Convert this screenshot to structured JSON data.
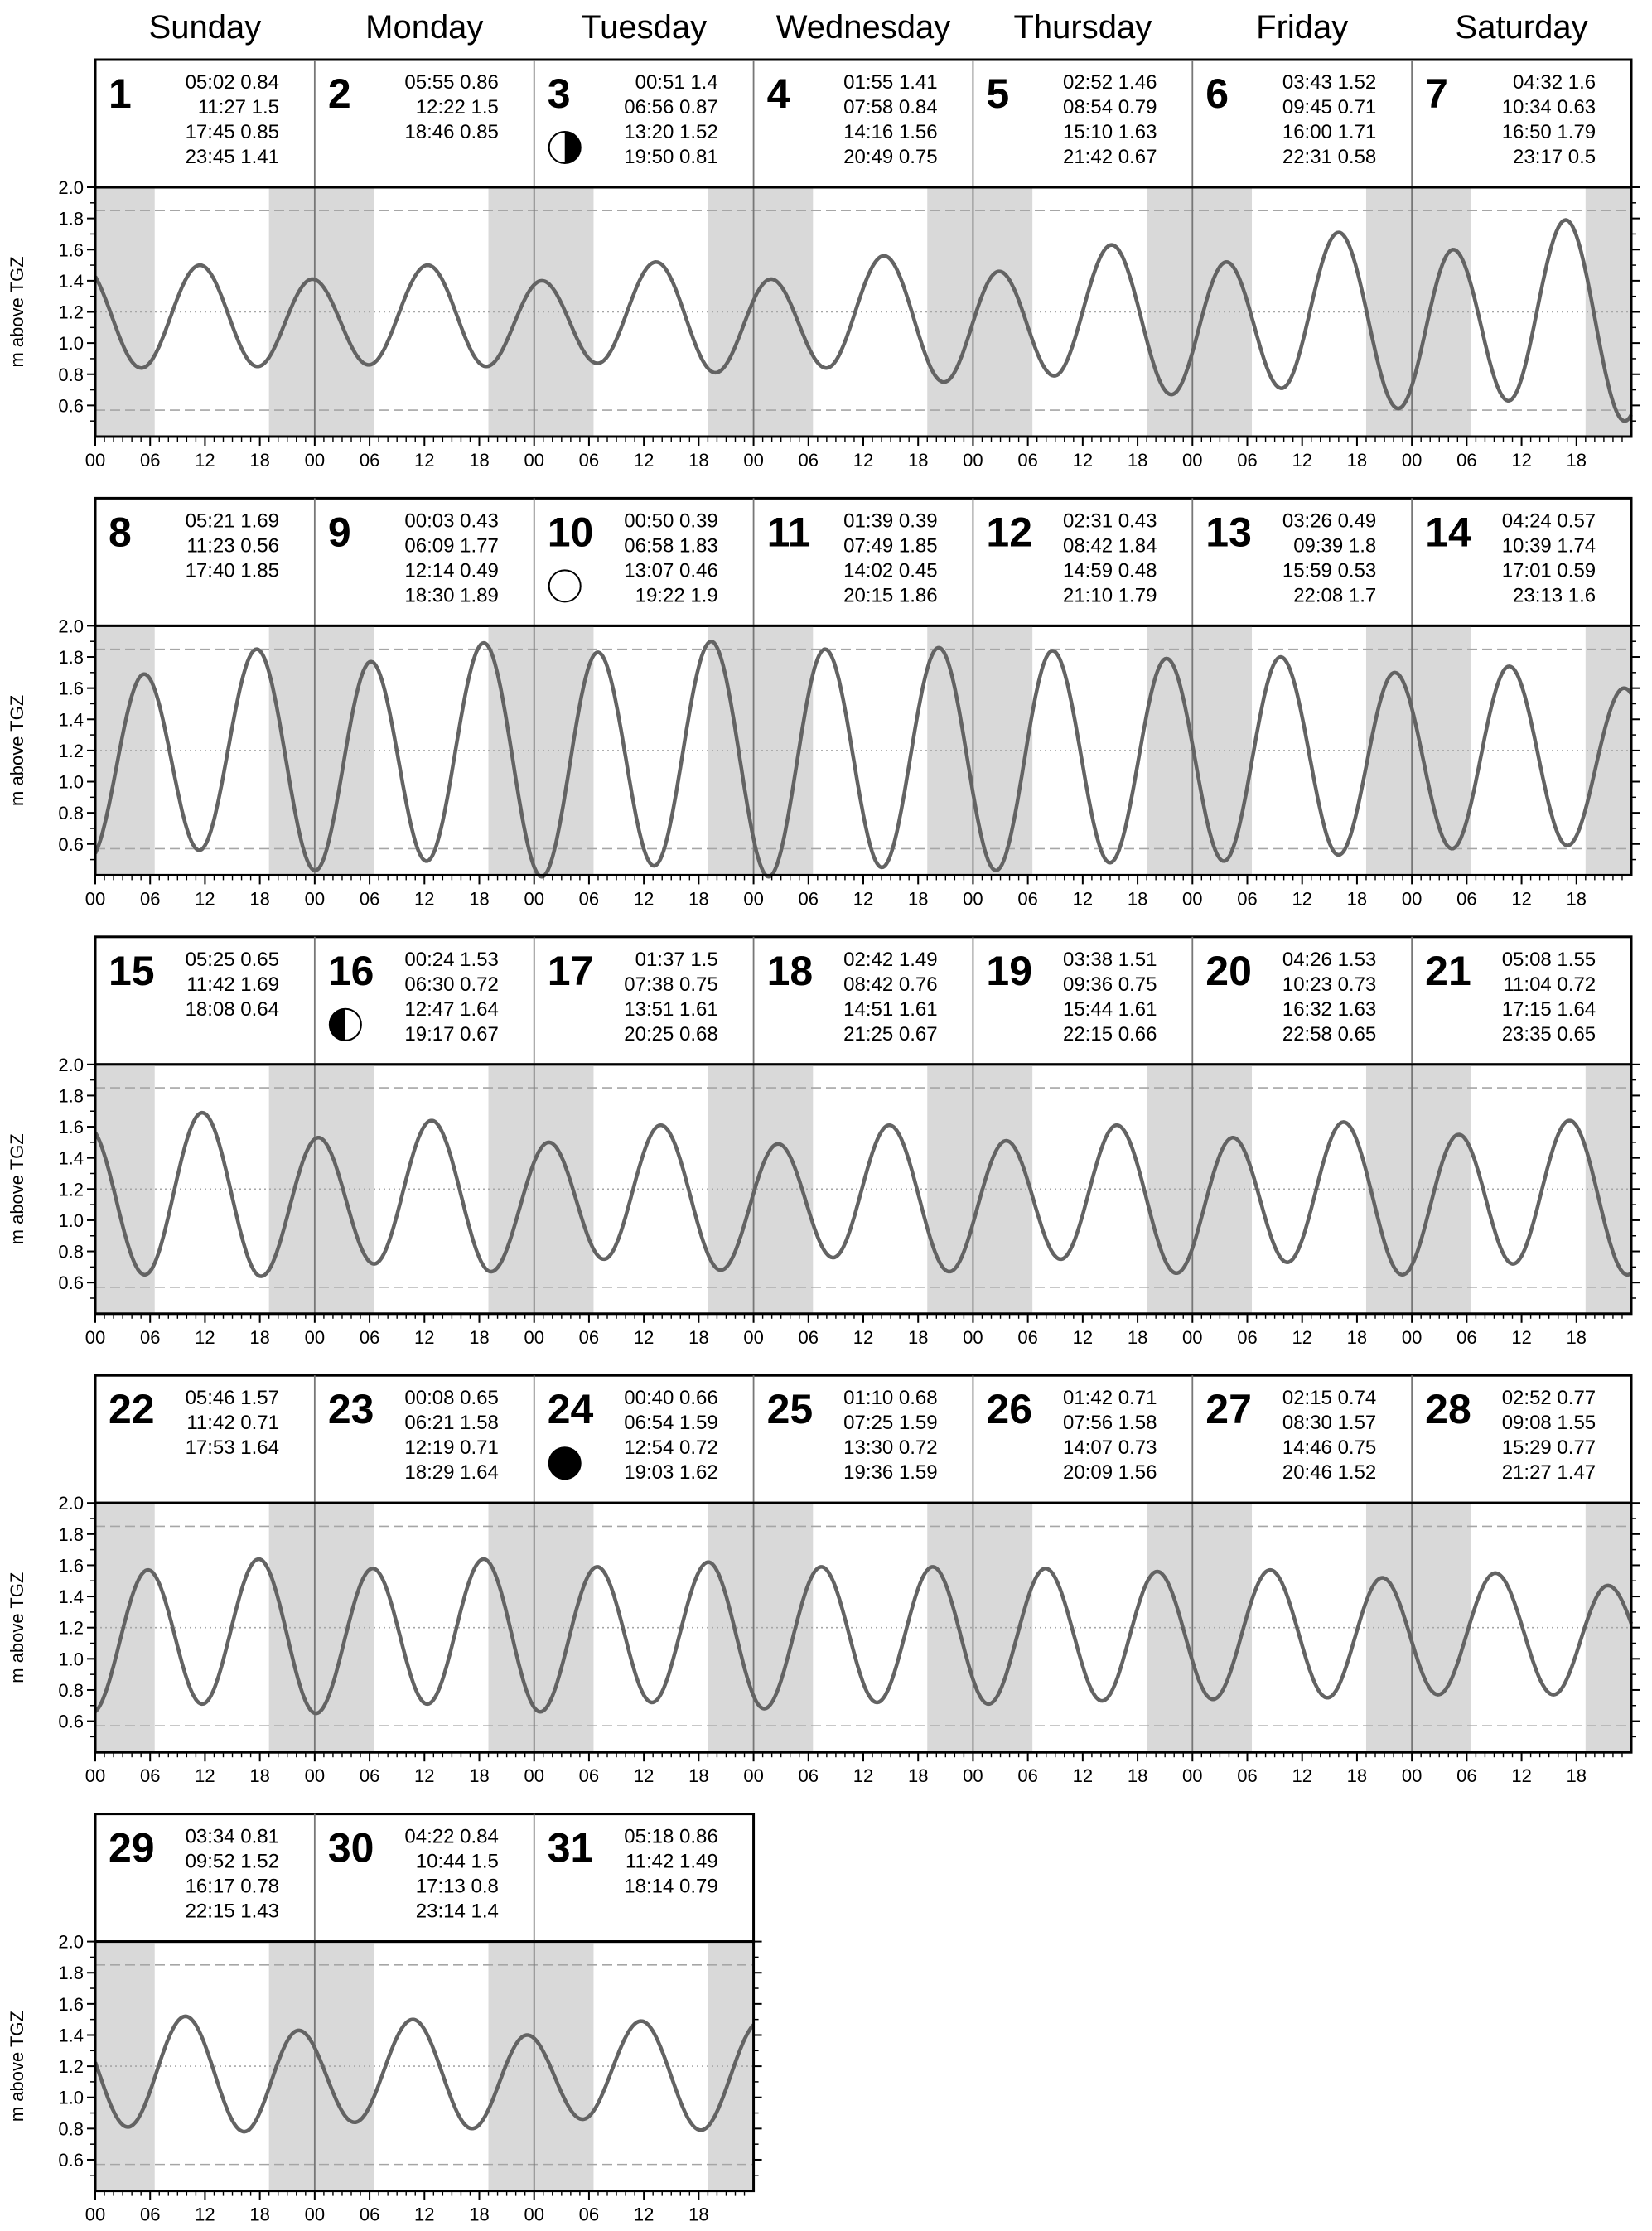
{
  "chart_data": {
    "type": "line",
    "title": "",
    "ylabel": "m above TGZ",
    "ylim": [
      0.4,
      2.0
    ],
    "yticks": [
      "0.6",
      "0.8",
      "1.0",
      "1.2",
      "1.4",
      "1.6",
      "1.8",
      "2.0"
    ],
    "xtick_labels": [
      "00",
      "06",
      "12",
      "18"
    ],
    "weekdays": [
      "Sunday",
      "Monday",
      "Tuesday",
      "Wednesday",
      "Thursday",
      "Friday",
      "Saturday"
    ],
    "reference_lines": {
      "upper_dashed": 1.85,
      "middle_dotted": 1.2,
      "lower_dashed": 0.57
    },
    "colors": {
      "curve": "#636363",
      "night": "#d9d9d9",
      "reference": "#a6a6a6",
      "frame": "#000000"
    },
    "night_shading": {
      "dark_before": "06:30",
      "dark_after": "19:00"
    },
    "days": [
      {
        "day": "1",
        "extremes": [
          "05:02 0.84",
          "11:27 1.5",
          "17:45 0.85",
          "23:45 1.41"
        ]
      },
      {
        "day": "2",
        "extremes": [
          "05:55 0.86",
          "12:22 1.5",
          "18:46 0.85"
        ]
      },
      {
        "day": "3",
        "moon": "first-quarter",
        "extremes": [
          "00:51 1.4",
          "06:56 0.87",
          "13:20 1.52",
          "19:50 0.81"
        ]
      },
      {
        "day": "4",
        "extremes": [
          "01:55 1.41",
          "07:58 0.84",
          "14:16 1.56",
          "20:49 0.75"
        ]
      },
      {
        "day": "5",
        "extremes": [
          "02:52 1.46",
          "08:54 0.79",
          "15:10 1.63",
          "21:42 0.67"
        ]
      },
      {
        "day": "6",
        "extremes": [
          "03:43 1.52",
          "09:45 0.71",
          "16:00 1.71",
          "22:31 0.58"
        ]
      },
      {
        "day": "7",
        "extremes": [
          "04:32 1.6",
          "10:34 0.63",
          "16:50 1.79",
          "23:17 0.5"
        ]
      },
      {
        "day": "8",
        "extremes": [
          "05:21 1.69",
          "11:23 0.56",
          "17:40 1.85"
        ]
      },
      {
        "day": "9",
        "extremes": [
          "00:03 0.43",
          "06:09 1.77",
          "12:14 0.49",
          "18:30 1.89"
        ]
      },
      {
        "day": "10",
        "moon": "full",
        "extremes": [
          "00:50 0.39",
          "06:58 1.83",
          "13:07 0.46",
          "19:22 1.9"
        ]
      },
      {
        "day": "11",
        "extremes": [
          "01:39 0.39",
          "07:49 1.85",
          "14:02 0.45",
          "20:15 1.86"
        ]
      },
      {
        "day": "12",
        "extremes": [
          "02:31 0.43",
          "08:42 1.84",
          "14:59 0.48",
          "21:10 1.79"
        ]
      },
      {
        "day": "13",
        "extremes": [
          "03:26 0.49",
          "09:39 1.8",
          "15:59 0.53",
          "22:08 1.7"
        ]
      },
      {
        "day": "14",
        "extremes": [
          "04:24 0.57",
          "10:39 1.74",
          "17:01 0.59",
          "23:13 1.6"
        ]
      },
      {
        "day": "15",
        "extremes": [
          "05:25 0.65",
          "11:42 1.69",
          "18:08 0.64"
        ]
      },
      {
        "day": "16",
        "moon": "last-quarter",
        "extremes": [
          "00:24 1.53",
          "06:30 0.72",
          "12:47 1.64",
          "19:17 0.67"
        ]
      },
      {
        "day": "17",
        "extremes": [
          "01:37 1.5",
          "07:38 0.75",
          "13:51 1.61",
          "20:25 0.68"
        ]
      },
      {
        "day": "18",
        "extremes": [
          "02:42 1.49",
          "08:42 0.76",
          "14:51 1.61",
          "21:25 0.67"
        ]
      },
      {
        "day": "19",
        "extremes": [
          "03:38 1.51",
          "09:36 0.75",
          "15:44 1.61",
          "22:15 0.66"
        ]
      },
      {
        "day": "20",
        "extremes": [
          "04:26 1.53",
          "10:23 0.73",
          "16:32 1.63",
          "22:58 0.65"
        ]
      },
      {
        "day": "21",
        "extremes": [
          "05:08 1.55",
          "11:04 0.72",
          "17:15 1.64",
          "23:35 0.65"
        ]
      },
      {
        "day": "22",
        "extremes": [
          "05:46 1.57",
          "11:42 0.71",
          "17:53 1.64"
        ]
      },
      {
        "day": "23",
        "extremes": [
          "00:08 0.65",
          "06:21 1.58",
          "12:19 0.71",
          "18:29 1.64"
        ]
      },
      {
        "day": "24",
        "moon": "new",
        "extremes": [
          "00:40 0.66",
          "06:54 1.59",
          "12:54 0.72",
          "19:03 1.62"
        ]
      },
      {
        "day": "25",
        "extremes": [
          "01:10 0.68",
          "07:25 1.59",
          "13:30 0.72",
          "19:36 1.59"
        ]
      },
      {
        "day": "26",
        "extremes": [
          "01:42 0.71",
          "07:56 1.58",
          "14:07 0.73",
          "20:09 1.56"
        ]
      },
      {
        "day": "27",
        "extremes": [
          "02:15 0.74",
          "08:30 1.57",
          "14:46 0.75",
          "20:46 1.52"
        ]
      },
      {
        "day": "28",
        "extremes": [
          "02:52 0.77",
          "09:08 1.55",
          "15:29 0.77",
          "21:27 1.47"
        ]
      },
      {
        "day": "29",
        "extremes": [
          "03:34 0.81",
          "09:52 1.52",
          "16:17 0.78",
          "22:15 1.43"
        ]
      },
      {
        "day": "30",
        "extremes": [
          "04:22 0.84",
          "10:44 1.5",
          "17:13 0.8",
          "23:14 1.4"
        ]
      },
      {
        "day": "31",
        "extremes": [
          "05:18 0.86",
          "11:42 1.49",
          "18:14 0.79"
        ]
      }
    ]
  }
}
